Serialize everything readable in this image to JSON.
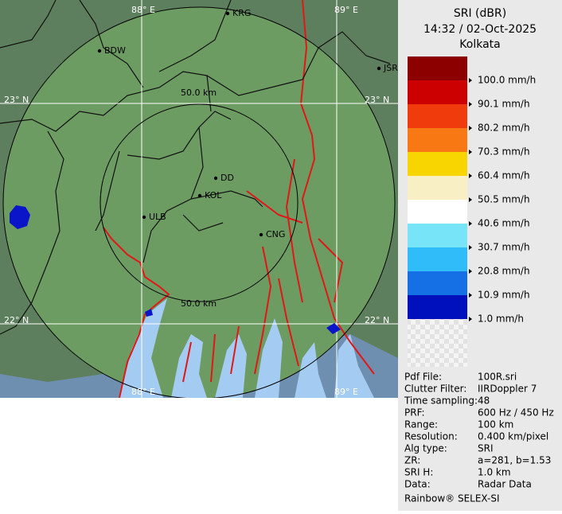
{
  "legend": {
    "title": "SRI (dBR)",
    "time": "14:32 / 02-Oct-2025",
    "site": "Kolkata",
    "colors": [
      "#8c0000",
      "#cc0000",
      "#f03c0c",
      "#f87814",
      "#f8d400",
      "#f8f0c4",
      "#ffffff",
      "#78e4f8",
      "#30bcf8",
      "#1470e4",
      "#0010bc"
    ],
    "levels": [
      "100.0 mm/h",
      "90.1 mm/h",
      "80.2 mm/h",
      "70.3 mm/h",
      "60.4 mm/h",
      "50.5 mm/h",
      "40.6 mm/h",
      "30.7 mm/h",
      "20.8 mm/h",
      "10.9 mm/h",
      "1.0 mm/h"
    ]
  },
  "map": {
    "cities": [
      "BDW",
      "KRG",
      "JSR",
      "DD",
      "KOL",
      "ULB",
      "CNG"
    ],
    "grid_labels": [
      "88° E",
      "89° E",
      "23° N",
      "23° N",
      "22° N",
      "22° N",
      "88° E",
      "89° E"
    ],
    "range_labels": [
      "50.0 km",
      "50.0 km"
    ]
  },
  "info": {
    "rows": [
      [
        "Pdf File:",
        "100R.sri"
      ],
      [
        "Clutter Filter:",
        "IIRDoppler 7"
      ],
      [
        "Time sampling:",
        "48"
      ],
      [
        "PRF:",
        "600 Hz / 450 Hz"
      ],
      [
        "Range:",
        "100 km"
      ],
      [
        "Resolution:",
        "0.400 km/pixel"
      ],
      [
        "Alg type:",
        "SRI"
      ],
      [
        "ZR:",
        "a=281, b=1.53"
      ],
      [
        "SRI H:",
        "1.0 km"
      ],
      [
        "Data:",
        "Radar Data"
      ]
    ],
    "footer": "Rainbow® SELEX-SI"
  }
}
